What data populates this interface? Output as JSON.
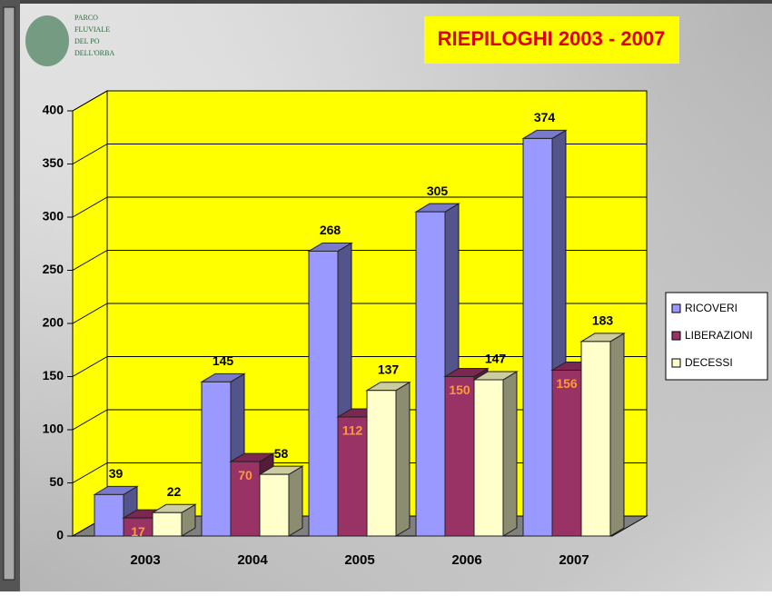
{
  "logo": [
    "PARCO",
    "FLUVIALE",
    "DEL PO",
    "DELL'ORBA"
  ],
  "chart_data": {
    "type": "bar3d",
    "title": "RIEPILOGHI 2003 - 2007",
    "categories": [
      "2003",
      "2004",
      "2005",
      "2006",
      "2007"
    ],
    "series": [
      {
        "name": "RICOVERI",
        "color": "#9999ff",
        "values": [
          39,
          145,
          268,
          305,
          374
        ]
      },
      {
        "name": "LIBERAZIONI",
        "color": "#993366",
        "values": [
          17,
          70,
          112,
          150,
          156
        ]
      },
      {
        "name": "DECESSI",
        "color": "#ffffcc",
        "values": [
          22,
          58,
          137,
          147,
          183
        ]
      }
    ],
    "ylim": [
      0,
      400
    ],
    "yticks": [
      0,
      50,
      100,
      150,
      200,
      250,
      300,
      350,
      400
    ],
    "grid": true,
    "legend": "right"
  }
}
